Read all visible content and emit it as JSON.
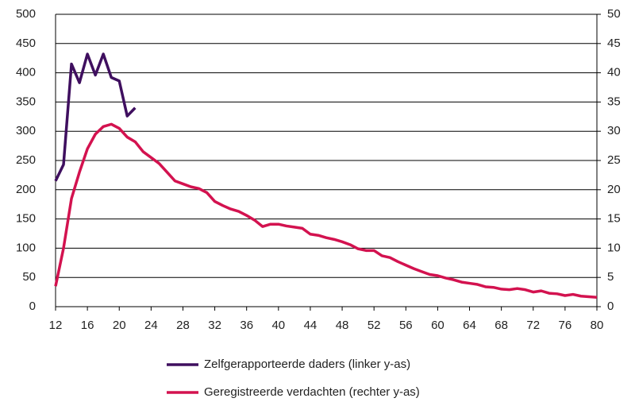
{
  "chart_data": {
    "type": "line",
    "xlim": [
      12,
      80
    ],
    "xticks": [
      12,
      16,
      20,
      24,
      28,
      32,
      36,
      40,
      44,
      48,
      52,
      56,
      60,
      64,
      68,
      72,
      76,
      80
    ],
    "ylim": [
      0,
      500
    ],
    "yticks": [
      0,
      50,
      100,
      150,
      200,
      250,
      300,
      350,
      400,
      450,
      500
    ],
    "y2lim": [
      0,
      50
    ],
    "y2ticks": [
      0,
      5,
      10,
      15,
      20,
      25,
      30,
      35,
      40,
      45,
      50
    ],
    "grid": true,
    "legend": "bottom",
    "series": [
      {
        "name": "Zelfgerapporteerde daders (linker y-as)",
        "color": "#3f0f5f",
        "axis": "y",
        "x": [
          12,
          13,
          14,
          15,
          16,
          17,
          18,
          19,
          20,
          21,
          22
        ],
        "values": [
          215,
          243,
          415,
          383,
          432,
          396,
          432,
          392,
          386,
          326,
          340
        ]
      },
      {
        "name": "Geregistreerde verdachten (rechter y-as)",
        "color": "#d3124f",
        "axis": "y2",
        "x": [
          12,
          13,
          14,
          15,
          16,
          17,
          18,
          19,
          20,
          21,
          22,
          23,
          24,
          25,
          26,
          27,
          28,
          29,
          30,
          31,
          32,
          33,
          34,
          35,
          36,
          37,
          38,
          39,
          40,
          41,
          42,
          43,
          44,
          45,
          46,
          47,
          48,
          49,
          50,
          51,
          52,
          53,
          54,
          55,
          56,
          57,
          58,
          59,
          60,
          61,
          62,
          63,
          64,
          65,
          66,
          67,
          68,
          69,
          70,
          71,
          72,
          73,
          74,
          75,
          76,
          77,
          78,
          79,
          80
        ],
        "values": [
          3.5,
          10,
          18.5,
          23,
          27,
          29.5,
          30.8,
          31.2,
          30.5,
          29,
          28.2,
          26.5,
          25.5,
          24.5,
          23,
          21.5,
          21,
          20.5,
          20.2,
          19.5,
          18,
          17.3,
          16.7,
          16.3,
          15.6,
          14.8,
          13.7,
          14.1,
          14.1,
          13.8,
          13.6,
          13.4,
          12.4,
          12.2,
          11.8,
          11.5,
          11.1,
          10.6,
          9.9,
          9.6,
          9.6,
          8.7,
          8.4,
          7.7,
          7.1,
          6.5,
          6,
          5.5,
          5.3,
          4.9,
          4.6,
          4.2,
          4,
          3.8,
          3.4,
          3.3,
          3,
          2.9,
          3.1,
          2.9,
          2.5,
          2.7,
          2.3,
          2.2,
          1.9,
          2.1,
          1.8,
          1.7,
          1.6
        ]
      }
    ]
  }
}
